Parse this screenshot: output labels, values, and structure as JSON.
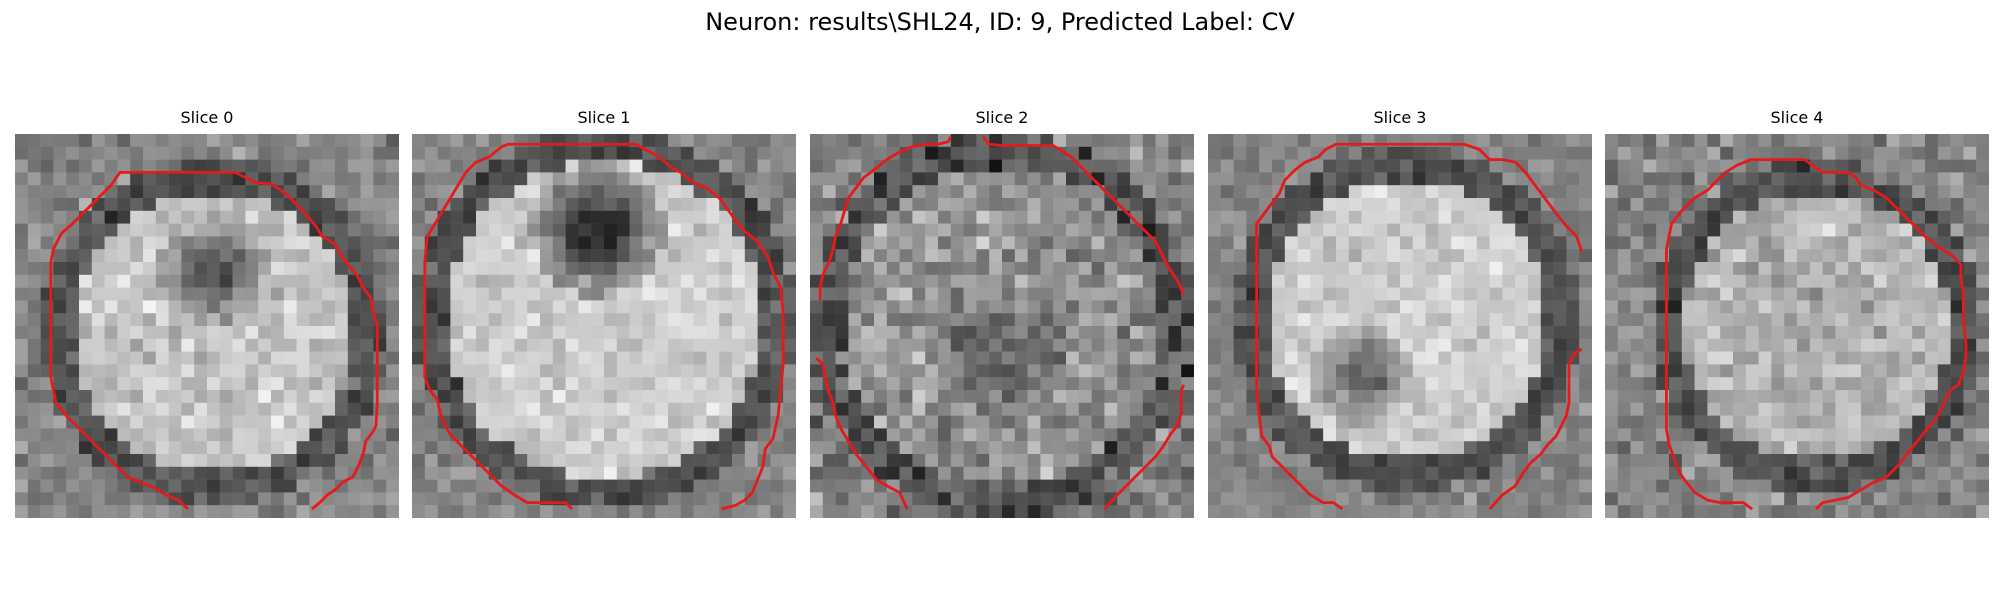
{
  "figure": {
    "title": "Neuron: results\\SHL24, ID: 9, Predicted Label: CV"
  },
  "panels": [
    {
      "title": "Slice 0"
    },
    {
      "title": "Slice 1"
    },
    {
      "title": "Slice 2"
    },
    {
      "title": "Slice 3"
    },
    {
      "title": "Slice 4"
    }
  ],
  "colors": {
    "contour": "#e41a1c",
    "background": "#ffffff"
  },
  "colormap": "gray"
}
